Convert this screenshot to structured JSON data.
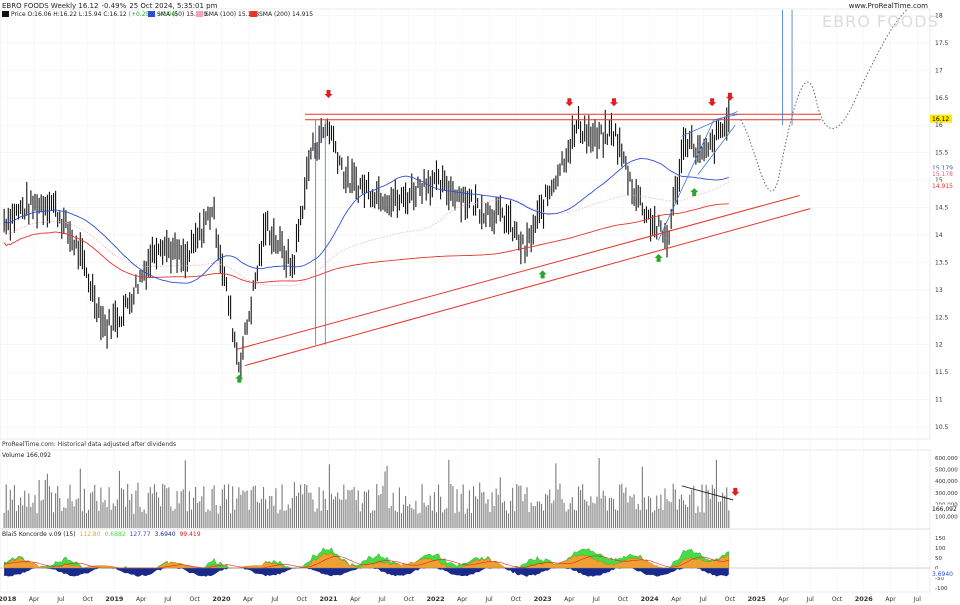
{
  "header": {
    "title": "EBRO FOODS Weekly 16.12",
    "change": "-0.49%",
    "timestamp": "25 Oct 2024, 5:35:01 pm",
    "website": "www.ProRealTime.com",
    "watermark": "EBRO FOODS"
  },
  "legend": {
    "price": "Price O:16.06 H:16.22 L:15.94 C:16.12",
    "price_change": "(+0.25% +0.04)",
    "sma50": "SMA (50) 15.179",
    "sma100": "SMA (100) 15.178",
    "sma200": "SMA (200) 14.915"
  },
  "footer_note": "ProRealTime.com: Historical data adjusted after dividends",
  "volume": {
    "label": "Volume 166,092",
    "last_value": "166,092",
    "axis_ticks": [
      "600,000",
      "500,000",
      "400,000",
      "300,000",
      "200,000",
      "100,000"
    ]
  },
  "indicator": {
    "label": "Blai5 Koncorde v.09 (15)",
    "values": [
      "112.80",
      "0.6882",
      "127.77",
      "3.6940",
      "99.419"
    ],
    "axis_ticks": [
      "150",
      "100",
      "50",
      "0",
      "-50",
      "-100"
    ],
    "current": "3.6940"
  },
  "price_axis": {
    "ticks": [
      "18",
      "17.5",
      "17",
      "16.5",
      "16",
      "15.5",
      "15",
      "14.5",
      "14",
      "13.5",
      "13",
      "12.5",
      "12",
      "11.5",
      "11",
      "10.5"
    ],
    "last_price": "16.12",
    "sma50_tag": "15.179",
    "sma100_tag": "15.178",
    "sma200_tag": "14.915"
  },
  "time_axis": [
    "2018",
    "Apr",
    "Jul",
    "Oct",
    "2019",
    "Apr",
    "Jul",
    "Oct",
    "2020",
    "Apr",
    "Jul",
    "Oct",
    "2021",
    "Apr",
    "Jul",
    "Oct",
    "2022",
    "Apr",
    "Jul",
    "Oct",
    "2023",
    "Apr",
    "Jul",
    "Oct",
    "2024",
    "Apr",
    "Jul",
    "Oct",
    "2025",
    "Apr",
    "Jul",
    "Oct",
    "2026",
    "Apr",
    "Jul"
  ],
  "colors": {
    "bars": "#111111",
    "sma50": "#2e4fd6",
    "sma100": "#f3a6b4",
    "sma200": "#e8342b",
    "resistance": "#e8342b",
    "channel": "#e8342b",
    "blue_lines": "#3c78d8",
    "up_arrow": "#2aa62a",
    "down_arrow": "#e02020",
    "volume": "#7a7a7a",
    "koncorde_green": "#44dd44",
    "koncorde_orange": "#f0a030",
    "koncorde_blue": "#1a2a8a"
  },
  "chart_data": {
    "type": "bar",
    "title": "EBRO FOODS Weekly",
    "ylim": [
      10.3,
      18.1
    ],
    "x_range": [
      "2018-01",
      "2026-09"
    ],
    "series": [
      {
        "name": "Price",
        "key_points": [
          [
            "2017-12",
            14.2
          ],
          [
            "2018-03",
            14.5
          ],
          [
            "2018-06",
            14.6
          ],
          [
            "2018-09",
            13.7
          ],
          [
            "2018-12",
            12.3
          ],
          [
            "2019-02",
            12.6
          ],
          [
            "2019-06",
            13.9
          ],
          [
            "2019-09",
            13.5
          ],
          [
            "2019-12",
            14.5
          ],
          [
            "2020-03",
            11.6
          ],
          [
            "2020-06",
            14.2
          ],
          [
            "2020-09",
            13.4
          ],
          [
            "2020-11",
            15.5
          ],
          [
            "2021-01",
            16.0
          ],
          [
            "2021-03",
            15.0
          ],
          [
            "2021-06",
            14.8
          ],
          [
            "2021-09",
            14.6
          ],
          [
            "2021-12",
            15.0
          ],
          [
            "2022-03",
            14.8
          ],
          [
            "2022-06",
            14.5
          ],
          [
            "2022-09",
            14.3
          ],
          [
            "2022-11",
            13.7
          ],
          [
            "2023-02",
            14.9
          ],
          [
            "2023-05",
            16.0
          ],
          [
            "2023-07",
            15.7
          ],
          [
            "2023-09",
            15.9
          ],
          [
            "2023-11",
            14.9
          ],
          [
            "2024-01",
            14.3
          ],
          [
            "2024-03",
            13.9
          ],
          [
            "2024-05",
            15.8
          ],
          [
            "2024-07",
            15.4
          ],
          [
            "2024-10",
            16.12
          ]
        ]
      },
      {
        "name": "SMA (50)",
        "value": 15.179
      },
      {
        "name": "SMA (100)",
        "value": 15.178
      },
      {
        "name": "SMA (200)",
        "value": 14.915
      }
    ],
    "annotations": {
      "resistance_levels": [
        16.1,
        16.2
      ],
      "down_arrows": [
        "2021-01",
        "2023-04",
        "2023-09",
        "2024-08",
        "2024-10"
      ],
      "up_arrows": [
        "2020-03",
        "2023-01",
        "2024-02",
        "2024-06"
      ]
    }
  }
}
